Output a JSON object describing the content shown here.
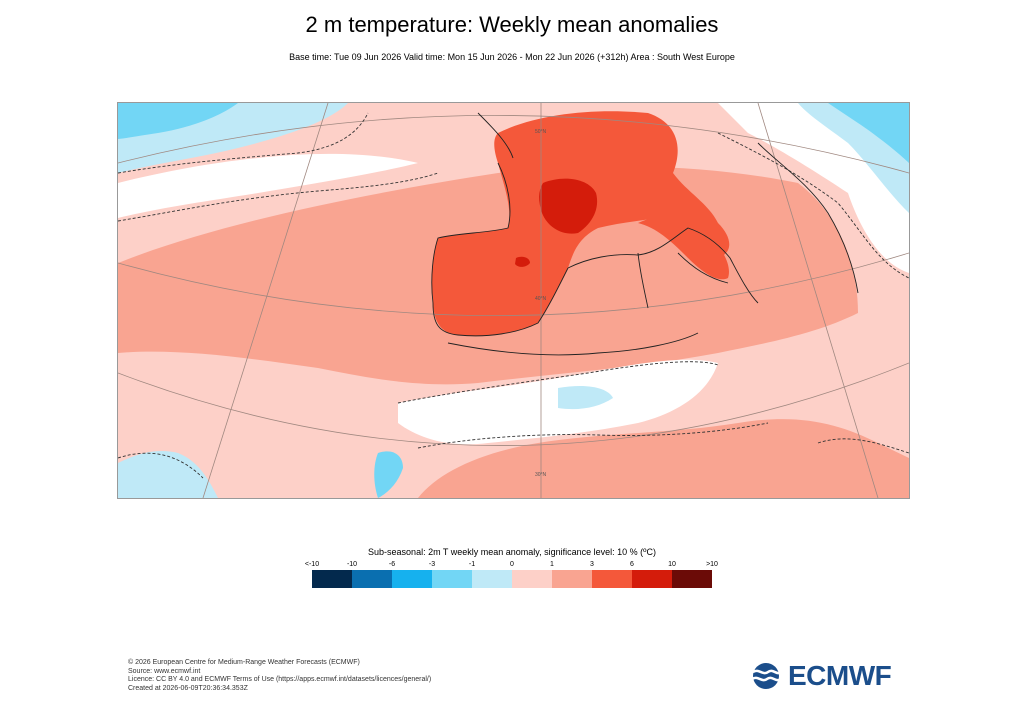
{
  "title": "2 m temperature: Weekly mean anomalies",
  "subtitle": "Base time: Tue 09 Jun 2026 Valid time: Mon 15 Jun 2026 - Mon 22 Jun 2026 (+312h) Area : South West Europe",
  "legend": {
    "title": "Sub-seasonal: 2m T weekly mean anomaly, significance level: 10 % (ºC)",
    "ticks": [
      "<-10",
      "-10",
      "-6",
      "-3",
      "-1",
      "0",
      "1",
      "3",
      "6",
      "10",
      ">10"
    ],
    "colors": [
      "#03294d",
      "#0a6fb0",
      "#16b1ee",
      "#72d6f5",
      "#bfe9f7",
      "#fdd0c8",
      "#f9a491",
      "#f4583a",
      "#d41c0b",
      "#6b0b07"
    ]
  },
  "map": {
    "graticule_labels": [
      "50°N",
      "40°N",
      "30°N"
    ]
  },
  "footer": {
    "line1": "© 2026 European Centre for Medium-Range Weather Forecasts (ECMWF)",
    "line2": "Source: www.ecmwf.int",
    "line3": "Licence: CC BY 4.0 and ECMWF Terms of Use (https://apps.ecmwf.int/datasets/licences/general/)",
    "line4": "Created at 2026-06-09T20:36:34.353Z"
  },
  "logo": {
    "text": "ECMWF",
    "color": "#1b4e8b"
  }
}
